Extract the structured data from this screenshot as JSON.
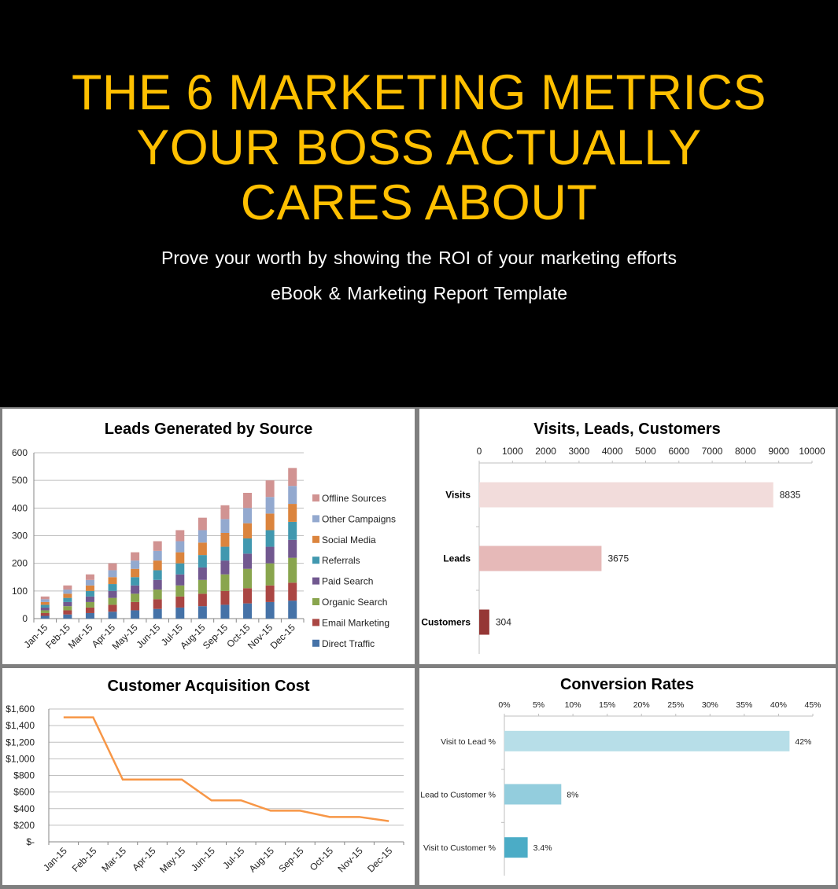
{
  "hero": {
    "title_lines": [
      "THE 6 MARKETING METRICS",
      "YOUR BOSS ACTUALLY",
      "CARES ABOUT"
    ],
    "subtitle": "Prove your worth by showing the ROI of your marketing efforts",
    "tagline": "eBook & Marketing Report Template",
    "title_color": "#ffc000"
  },
  "chart_data": [
    {
      "type": "bar",
      "stacked": true,
      "title": "Leads Generated by Source",
      "xlabel": "",
      "ylabel": "",
      "ylim": [
        0,
        600
      ],
      "yticks": [
        0,
        100,
        200,
        300,
        400,
        500,
        600
      ],
      "grid": true,
      "legend_position": "right",
      "categories": [
        "Jan-15",
        "Feb-15",
        "Mar-15",
        "Apr-15",
        "May-15",
        "Jun-15",
        "Jul-15",
        "Aug-15",
        "Sep-15",
        "Oct-15",
        "Nov-15",
        "Dec-15"
      ],
      "series": [
        {
          "name": "Direct Traffic",
          "color": "#4572a7",
          "values": [
            10,
            15,
            20,
            25,
            30,
            35,
            40,
            45,
            50,
            55,
            60,
            65
          ]
        },
        {
          "name": "Email Marketing",
          "color": "#aa4643",
          "values": [
            10,
            15,
            20,
            25,
            30,
            35,
            40,
            45,
            50,
            55,
            60,
            65
          ]
        },
        {
          "name": "Organic Search",
          "color": "#89a54e",
          "values": [
            10,
            15,
            20,
            25,
            30,
            35,
            40,
            50,
            60,
            70,
            80,
            90
          ]
        },
        {
          "name": "Paid Search",
          "color": "#71588f",
          "values": [
            10,
            15,
            20,
            25,
            30,
            35,
            40,
            45,
            50,
            55,
            60,
            65
          ]
        },
        {
          "name": "Referrals",
          "color": "#4198af",
          "values": [
            10,
            15,
            20,
            25,
            30,
            35,
            40,
            45,
            50,
            55,
            60,
            65
          ]
        },
        {
          "name": "Social Media",
          "color": "#db843d",
          "values": [
            10,
            15,
            20,
            25,
            30,
            35,
            40,
            45,
            50,
            55,
            60,
            65
          ]
        },
        {
          "name": "Other Campaigns",
          "color": "#93a9cf",
          "values": [
            10,
            15,
            20,
            25,
            30,
            35,
            40,
            45,
            50,
            55,
            60,
            65
          ]
        },
        {
          "name": "Offline Sources",
          "color": "#d19392",
          "values": [
            10,
            15,
            20,
            25,
            30,
            35,
            40,
            45,
            50,
            55,
            60,
            65
          ]
        }
      ]
    },
    {
      "type": "bar",
      "orientation": "horizontal",
      "title": "Visits, Leads, Customers",
      "xlim": [
        0,
        10000
      ],
      "xticks": [
        0,
        1000,
        2000,
        3000,
        4000,
        5000,
        6000,
        7000,
        8000,
        9000,
        10000
      ],
      "grid": false,
      "categories": [
        "Visits",
        "Leads",
        "Customers"
      ],
      "values": [
        8835,
        3675,
        304
      ],
      "data_labels": [
        "8835",
        "3675",
        "304"
      ],
      "colors": [
        "#f2dcdb",
        "#e6b9b8",
        "#953735"
      ]
    },
    {
      "type": "line",
      "title": "Customer Acquisition Cost",
      "ylim": [
        0,
        1600
      ],
      "yticks": [
        "$-",
        "$200",
        "$400",
        "$600",
        "$800",
        "$1,000",
        "$1,200",
        "$1,400",
        "$1,600"
      ],
      "grid": true,
      "categories": [
        "Jan-15",
        "Feb-15",
        "Mar-15",
        "Apr-15",
        "May-15",
        "Jun-15",
        "Jul-15",
        "Aug-15",
        "Sep-15",
        "Oct-15",
        "Nov-15",
        "Dec-15"
      ],
      "series": [
        {
          "name": "CAC",
          "color": "#f79646",
          "values": [
            1500,
            1500,
            750,
            750,
            750,
            500,
            500,
            375,
            375,
            300,
            300,
            250
          ]
        }
      ]
    },
    {
      "type": "bar",
      "orientation": "horizontal",
      "title": "Conversion Rates",
      "xlim": [
        0,
        45
      ],
      "xticks": [
        "0%",
        "5%",
        "10%",
        "15%",
        "20%",
        "25%",
        "30%",
        "35%",
        "40%",
        "45%"
      ],
      "grid": false,
      "categories": [
        "Visit to Lead %",
        "Lead to Customer %",
        "Visit to Customer %"
      ],
      "values": [
        41.6,
        8.3,
        3.4
      ],
      "data_labels": [
        "42%",
        "8%",
        "3.4%"
      ],
      "colors": [
        "#b7dee8",
        "#93cddd",
        "#4bacc6"
      ]
    }
  ]
}
